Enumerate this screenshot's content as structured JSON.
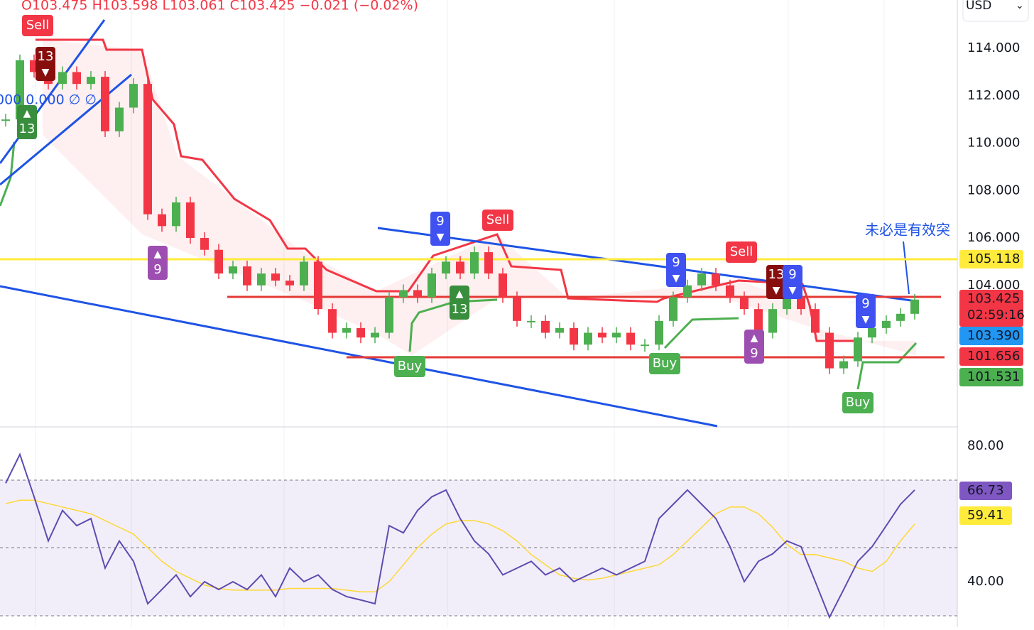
{
  "header": {
    "ohlc": "O103.475 H103.598 L103.061 C103.425 −0.021 (−0.02%)",
    "indicator_values": "000 0.000 ∅ ∅",
    "currency": "USD"
  },
  "price_pane": {
    "ylim": [
      98.06,
      116.04
    ],
    "yticks": [
      {
        "value": 114,
        "label": "114.000"
      },
      {
        "value": 112,
        "label": "112.000"
      },
      {
        "value": 110,
        "label": "110.000"
      },
      {
        "value": 108,
        "label": "108.000"
      },
      {
        "value": 106,
        "label": "106.000"
      },
      {
        "value": 104,
        "label": "104.000"
      }
    ],
    "closes": [
      111,
      113.5,
      113,
      112.5,
      113,
      112.5,
      112.8,
      110.5,
      111.5,
      112.5,
      107,
      106.5,
      107.5,
      106,
      105.5,
      104.5,
      104.8,
      104,
      104.5,
      104.2,
      104,
      105,
      103,
      102,
      102.2,
      101.8,
      102,
      103.5,
      103.8,
      103.5,
      104.5,
      105,
      104.5,
      105.4,
      104.5,
      103.5,
      102.5,
      102.5,
      102,
      102.2,
      101.5,
      102,
      101.8,
      102,
      101.5,
      101.5,
      102.5,
      103.5,
      104,
      104.5,
      104,
      103.5,
      103,
      102,
      103,
      103.5,
      103,
      102,
      100.5,
      100.8,
      101.8,
      102.2,
      102.5,
      102.8,
      103.4
    ],
    "price_tags": [
      "105.118",
      "103.425",
      "02:59:16",
      "103.390",
      "101.656",
      "101.531"
    ],
    "signals": [
      "Sell",
      "13",
      "13",
      "9",
      "9",
      "Sell",
      "13",
      "Buy",
      "9",
      "Sell",
      "13",
      "9",
      "9",
      "Buy",
      "9",
      "Buy"
    ],
    "annotation": "未必是有效突"
  },
  "rsi_pane": {
    "ylim": [
      26.6,
      85.4
    ],
    "yticks": [
      {
        "value": 80,
        "label": "80.00"
      },
      {
        "value": 40,
        "label": "40.00"
      }
    ],
    "rsi": [
      69,
      77.5,
      65,
      52,
      61,
      56.5,
      58.6,
      44,
      52,
      46,
      33.5,
      37.7,
      42,
      35.6,
      40,
      37.7,
      40,
      37.7,
      42,
      35.6,
      44,
      40,
      42,
      37.7,
      35.6,
      34.6,
      33.5,
      56.5,
      54.4,
      61,
      65,
      67,
      58.6,
      52,
      48.2,
      42,
      44,
      46,
      42,
      44,
      40,
      42,
      44,
      42,
      44,
      46,
      58.6,
      62.8,
      67,
      62.8,
      58.6,
      50.3,
      40,
      46,
      48.2,
      52,
      50.3,
      40,
      29.5,
      37.7,
      46,
      50.3,
      56.5,
      62.8,
      67
    ],
    "rsi_ma": [
      63,
      64,
      64,
      63,
      62,
      61,
      60,
      58,
      56,
      54,
      50,
      46,
      43,
      41,
      39,
      38,
      37.5,
      37.5,
      37.5,
      37.5,
      38,
      38,
      38,
      38,
      37.5,
      37,
      37,
      40,
      45,
      50,
      54,
      57,
      58,
      58,
      57,
      55,
      52,
      48,
      45,
      42,
      41,
      40.5,
      41,
      42,
      43,
      44,
      45,
      48,
      52,
      56,
      60,
      62,
      62,
      60,
      56,
      51,
      48,
      48,
      47,
      46,
      44,
      43,
      46,
      52,
      57
    ],
    "tags": [
      "66.73",
      "59.41"
    ]
  }
}
